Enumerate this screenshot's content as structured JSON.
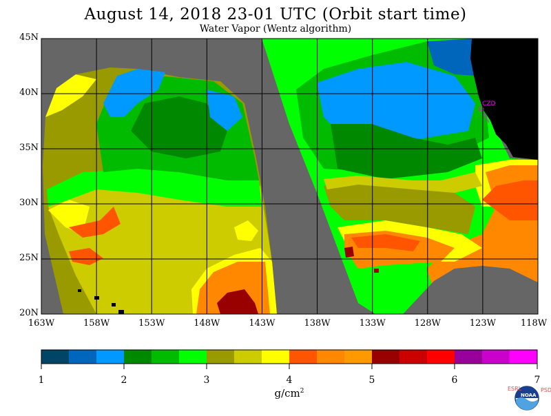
{
  "title": "August 14, 2018  23-01 UTC  (Orbit start time)",
  "subtitle": "Water Vapor (Wentz algorithm)",
  "latitude_labels": [
    "45N",
    "40N",
    "35N",
    "30N",
    "25N",
    "20N"
  ],
  "longitude_labels": [
    "163W",
    "158W",
    "153W",
    "148W",
    "143W",
    "138W",
    "133W",
    "128W",
    "123W",
    "118W"
  ],
  "station_label": "CZD",
  "colorbar": {
    "ticks": [
      "1",
      "2",
      "3",
      "4",
      "5",
      "6",
      "7"
    ],
    "units": "g/cm",
    "units_sup": "2",
    "colors": [
      "#004466",
      "#0066bb",
      "#0099ff",
      "#008800",
      "#00bb00",
      "#00ff00",
      "#999900",
      "#cccc00",
      "#ffff00",
      "#ff5500",
      "#ff8800",
      "#ff9900",
      "#990000",
      "#cc0000",
      "#ff0000",
      "#990099",
      "#cc00cc",
      "#ff00ff"
    ]
  },
  "logo": {
    "left_letters": "ESRL",
    "right_letters": "PSD",
    "name": "NOAA"
  },
  "map_colors": {
    "no_data": "#666666",
    "land": "#000000",
    "grid": "#000000",
    "station": "#ff00ff"
  }
}
